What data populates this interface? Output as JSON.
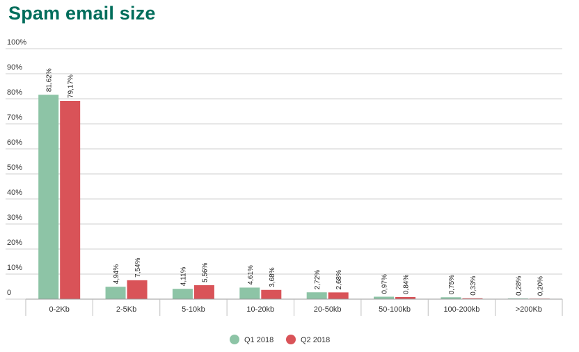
{
  "chart_data": {
    "type": "bar",
    "title": "Spam email size",
    "categories": [
      "0-2Kb",
      "2-5Kb",
      "5-10kb",
      "10-20kb",
      "20-50kb",
      "50-100kb",
      "100-200kb",
      ">200Kb"
    ],
    "series": [
      {
        "name": "Q1 2018",
        "color": "#8dc4a6",
        "values": [
          81.62,
          4.94,
          4.11,
          4.61,
          2.72,
          0.97,
          0.75,
          0.28
        ],
        "labels": [
          "81,62%",
          "4,94%",
          "4,11%",
          "4,61%",
          "2,72%",
          "0,97%",
          "0,75%",
          "0,28%"
        ]
      },
      {
        "name": "Q2 2018",
        "color": "#d95358",
        "values": [
          79.17,
          7.54,
          5.56,
          3.68,
          2.68,
          0.84,
          0.33,
          0.2
        ],
        "labels": [
          "79,17%",
          "7,54%",
          "5,56%",
          "3,68%",
          "2,68%",
          "0,84%",
          "0,33%",
          "0,20%"
        ]
      }
    ],
    "yticks": [
      0,
      10,
      20,
      30,
      40,
      50,
      60,
      70,
      80,
      90,
      100
    ],
    "ytick_labels": [
      "0",
      "10%",
      "20%",
      "30%",
      "40%",
      "50%",
      "60%",
      "70%",
      "80%",
      "90%",
      "100%"
    ],
    "ylim": [
      0,
      100
    ],
    "grid": true,
    "legend_position": "bottom-center",
    "xlabel": "",
    "ylabel": ""
  }
}
